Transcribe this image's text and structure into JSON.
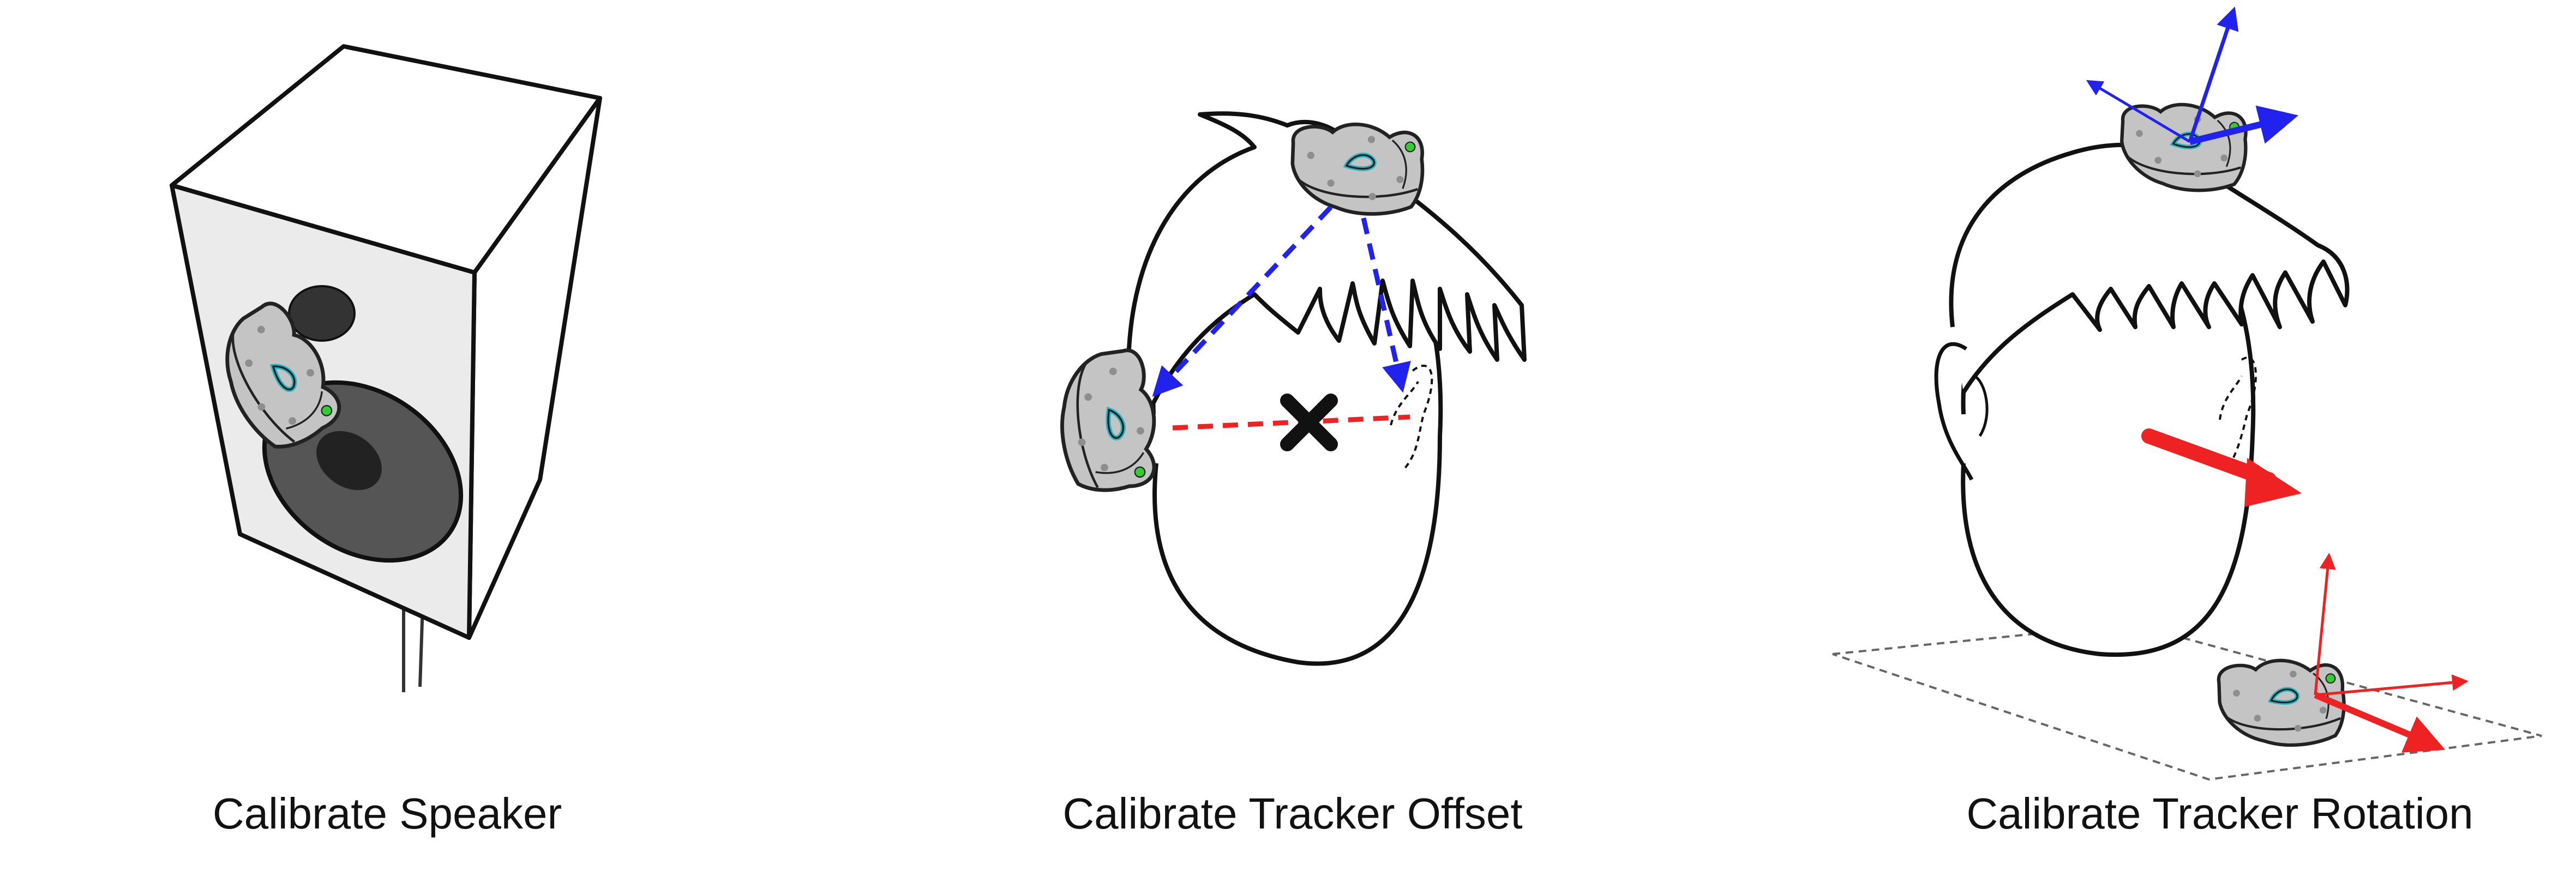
{
  "panels": [
    {
      "caption": "Calibrate Speaker"
    },
    {
      "caption": "Calibrate Tracker Offset"
    },
    {
      "caption": "Calibrate Tracker Rotation"
    }
  ],
  "colors": {
    "tracker_fill": "#c4c4c4",
    "tracker_outline": "#222222",
    "tracker_hole": "#2bb5c2",
    "tracker_led": "#33cc33",
    "offset_arrows": "#2222ee",
    "error_line": "#ee2222",
    "speaker_cone": "#555555",
    "speaker_dome": "#222222"
  },
  "icons": [
    "speaker",
    "vive-tracker",
    "head",
    "error-x-mark",
    "axis-arrows"
  ]
}
